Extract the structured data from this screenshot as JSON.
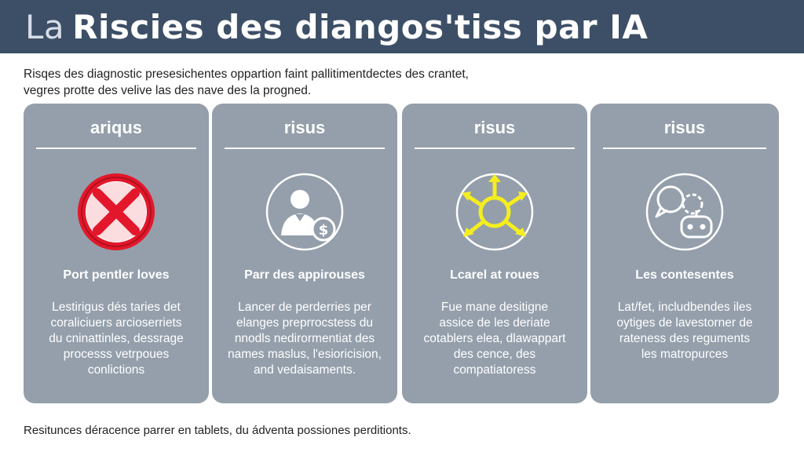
{
  "header": {
    "prefix": "La",
    "title": "Riscies des diangos'tiss par IA"
  },
  "intro": {
    "line1": "Risqes des diagnostic presesichentes oppartion faint pallitimentdectes des crantet,",
    "line2": "vegres protte des velive las des nave des la progned."
  },
  "cards": [
    {
      "title": "ariqus",
      "icon": "forbidden-x-icon",
      "subtitle": "Port pentler loves",
      "body": [
        "Lestirigus dés taries det",
        "coraliciuers arcioserriets",
        "du cninattinles, dessrage",
        "processs vetrpoues",
        "conlictions"
      ]
    },
    {
      "title": "risus",
      "icon": "person-money-icon",
      "subtitle": "Parr des appirouses",
      "body": [
        "Lancer de perderries per",
        "elanges preprrocstess du",
        "nnodls nedirormentiat des",
        "names maslus, l'esioricision,",
        "and vedaisaments."
      ]
    },
    {
      "title": "risus",
      "icon": "network-arrows-icon",
      "subtitle": "Lcarel at roues",
      "body": [
        "Fue mane desitigne",
        "assice de les deriate",
        "cotablers elea, dlawappart",
        "des cence, des",
        "compatiatoress"
      ]
    },
    {
      "title": "risus",
      "icon": "chat-robot-icon",
      "subtitle": "Les contesentes",
      "body": [
        "Lat/fet, includbendes iles",
        "oytiges de lavestorner de",
        "rateness des reguments",
        "les matropurces"
      ]
    }
  ],
  "footer": "Resitunces déracence parrer en tablets, du ádventa possiones perditionts.",
  "colors": {
    "header": "#3c4f66",
    "card": "#949fab",
    "forbidden": "#e3172b",
    "network": "#f5ee1f"
  }
}
